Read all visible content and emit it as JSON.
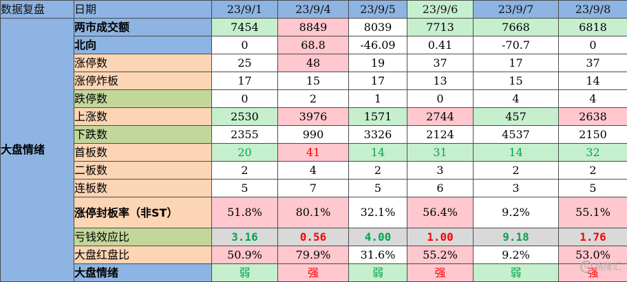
{
  "header": {
    "title": "数据复盘",
    "date_label": "日期",
    "dates": [
      "23/9/1",
      "23/9/4",
      "23/9/5",
      "23/9/6",
      "23/9/7",
      "23/9/8"
    ]
  },
  "side_label": "大盘情绪",
  "rows": [
    {
      "label": "两市成交额",
      "values": [
        "7454",
        "8849",
        "8039",
        "7713",
        "7668",
        "6818"
      ]
    },
    {
      "label": "北向",
      "values": [
        "0",
        "68.8",
        "-46.09",
        "0.41",
        "-70.7",
        "0"
      ]
    },
    {
      "label": "涨停数",
      "values": [
        "25",
        "48",
        "19",
        "37",
        "17",
        "37"
      ]
    },
    {
      "label": "涨停炸板",
      "values": [
        "17",
        "15",
        "17",
        "13",
        "15",
        "14"
      ]
    },
    {
      "label": "跌停数",
      "values": [
        "0",
        "2",
        "1",
        "0",
        "4",
        "4"
      ]
    },
    {
      "label": "上涨数",
      "values": [
        "2530",
        "3976",
        "1571",
        "2744",
        "457",
        "2638"
      ]
    },
    {
      "label": "下跌数",
      "values": [
        "2355",
        "990",
        "3326",
        "2124",
        "4537",
        "2150"
      ]
    },
    {
      "label": "首板数",
      "values": [
        "20",
        "41",
        "14",
        "31",
        "14",
        "32"
      ]
    },
    {
      "label": "二板数",
      "values": [
        "2",
        "4",
        "2",
        "3",
        "2",
        "2"
      ]
    },
    {
      "label": "连板数",
      "values": [
        "5",
        "7",
        "5",
        "6",
        "3",
        "5"
      ]
    },
    {
      "label": "涨停封板率（非ST）",
      "values": [
        "51.8%",
        "80.1%",
        "32.1%",
        "56.4%",
        "9.2%",
        "55.1%"
      ]
    },
    {
      "label": "亏钱效应比",
      "values": [
        "3.16",
        "0.56",
        "4.00",
        "1.00",
        "9.18",
        "1.76"
      ]
    },
    {
      "label": "大盘红盘比",
      "values": [
        "50.9%",
        "79.9%",
        "31.6%",
        "55.2%",
        "9.2%",
        "53.0%"
      ]
    },
    {
      "label": "大盘情绪",
      "values": [
        "弱",
        "强",
        "弱",
        "强",
        "弱",
        "强"
      ]
    }
  ],
  "watermark": "格隆汇",
  "colors": {
    "header_blue": "#8db4e2",
    "label_peach": "#fcd5b4",
    "label_olive": "#c4d79b",
    "cell_green": "#c6efce",
    "cell_red": "#ffc7ce",
    "cell_gray": "#d9d9d9",
    "text_green": "#00a550",
    "text_red": "#ff0000"
  }
}
